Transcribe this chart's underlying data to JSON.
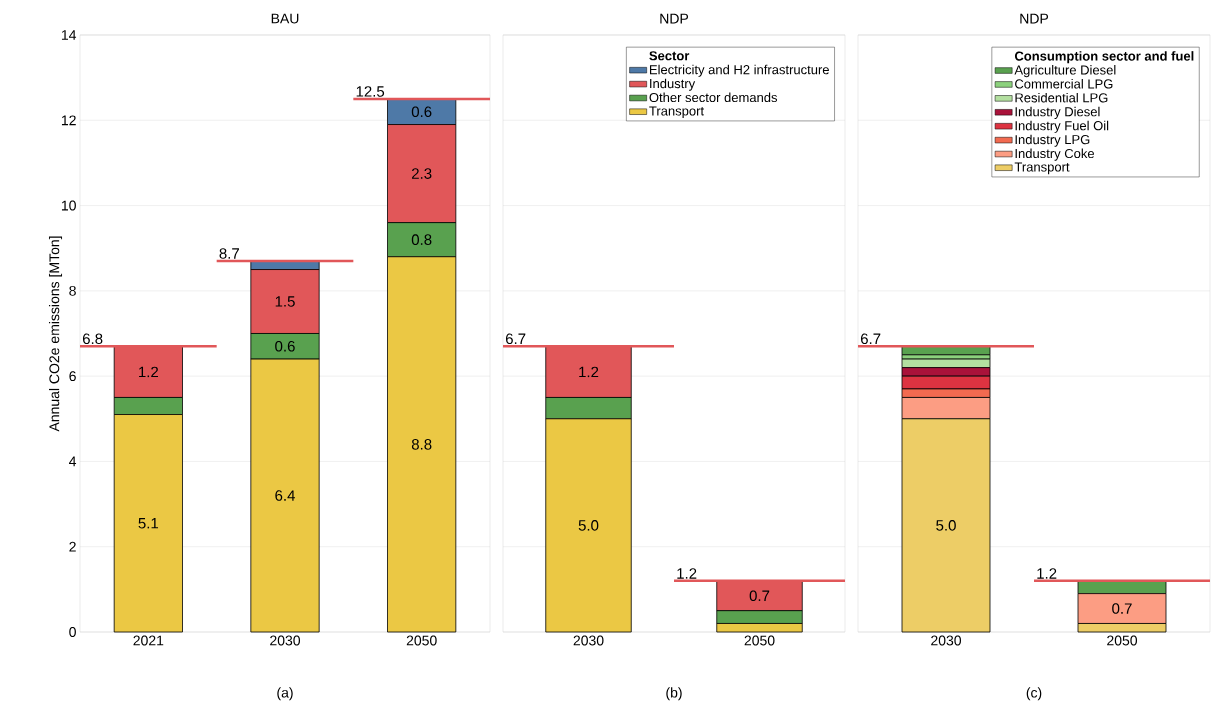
{
  "chart_data": [
    {
      "type": "bar",
      "title": "BAU",
      "xlabel": "(a)",
      "ylabel": "Annual CO2e emissions [MTon]",
      "categories": [
        "2021",
        "2030",
        "2050"
      ],
      "stacked": true,
      "ylim": [
        0,
        14
      ],
      "yticks": [
        0,
        2,
        4,
        6,
        8,
        10,
        12,
        14
      ],
      "grid": "y",
      "totals": [
        "6.8",
        "8.7",
        "12.5"
      ],
      "series": [
        {
          "color": "#ebc844",
          "values": [
            5.1,
            6.4,
            8.8
          ],
          "value_labels": [
            "5.1",
            "6.4",
            "8.8"
          ]
        },
        {
          "color": "#59a14f",
          "values": [
            0.4,
            0.6,
            0.8
          ],
          "value_labels": [
            null,
            "0.6",
            "0.8"
          ]
        },
        {
          "color": "#e15759",
          "values": [
            1.2,
            1.5,
            2.3
          ],
          "value_labels": [
            "1.2",
            "1.5",
            "2.3"
          ]
        },
        {
          "color": "#4e79a7",
          "values": [
            0,
            0.2,
            0.6
          ],
          "value_labels": [
            null,
            null,
            "0.6"
          ]
        }
      ]
    },
    {
      "type": "bar",
      "title": "NDP",
      "xlabel": "(b)",
      "categories": [
        "2030",
        "2050"
      ],
      "stacked": true,
      "ylim": [
        0,
        14
      ],
      "yticks": [
        0,
        2,
        4,
        6,
        8,
        10,
        12,
        14
      ],
      "grid": "y",
      "tick_labels": "x",
      "totals": [
        "6.7",
        "1.2"
      ],
      "legend": "top right",
      "legend_title": "Sector",
      "series": [
        {
          "name": "Transport",
          "color": "#ebc844",
          "values": [
            5.0,
            0.2
          ],
          "value_labels": [
            "5.0",
            null
          ]
        },
        {
          "name": "Other sector demands",
          "color": "#59a14f",
          "values": [
            0.5,
            0.3
          ],
          "value_labels": [
            null,
            null
          ]
        },
        {
          "name": "Industry",
          "color": "#e15759",
          "values": [
            1.2,
            0.7
          ],
          "value_labels": [
            "1.2",
            "0.7"
          ]
        },
        {
          "name": "Electricity and H2 infrastructure",
          "color": "#4e79a7",
          "values": [
            0,
            0
          ],
          "value_labels": [
            null,
            null
          ]
        }
      ]
    },
    {
      "type": "bar",
      "title": "NDP",
      "xlabel": "(c)",
      "categories": [
        "2030",
        "2050"
      ],
      "stacked": true,
      "ylim": [
        0,
        14
      ],
      "yticks": [
        0,
        2,
        4,
        6,
        8,
        10,
        12,
        14
      ],
      "grid": "y",
      "tick_labels": "x",
      "totals": [
        "6.7",
        "1.2"
      ],
      "legend": "top right",
      "legend_title": "Consumption sector and fuel",
      "series": [
        {
          "name": "Transport",
          "color": "#edcd66",
          "values": [
            5.0,
            0.2
          ],
          "value_labels": [
            "5.0",
            null
          ]
        },
        {
          "name": "Industry Coke",
          "color": "#fc9d83",
          "values": [
            0.5,
            0.7
          ],
          "value_labels": [
            null,
            "0.7"
          ]
        },
        {
          "name": "Industry LPG",
          "color": "#f26a50",
          "values": [
            0.2,
            0
          ],
          "value_labels": [
            null,
            null
          ]
        },
        {
          "name": "Industry Fuel Oil",
          "color": "#dd3341",
          "values": [
            0.3,
            0
          ],
          "value_labels": [
            null,
            null
          ]
        },
        {
          "name": "Industry Diesel",
          "color": "#a9123a",
          "values": [
            0.2,
            0
          ],
          "value_labels": [
            null,
            null
          ]
        },
        {
          "name": "Residential LPG",
          "color": "#b3dfa0",
          "values": [
            0.2,
            0
          ],
          "value_labels": [
            null,
            null
          ]
        },
        {
          "name": "Commercial LPG",
          "color": "#8cd17d",
          "values": [
            0.1,
            0
          ],
          "value_labels": [
            null,
            null
          ]
        },
        {
          "name": "Agriculture Diesel",
          "color": "#59a14f",
          "values": [
            0.2,
            0.3
          ],
          "value_labels": [
            null,
            null
          ]
        }
      ]
    }
  ]
}
